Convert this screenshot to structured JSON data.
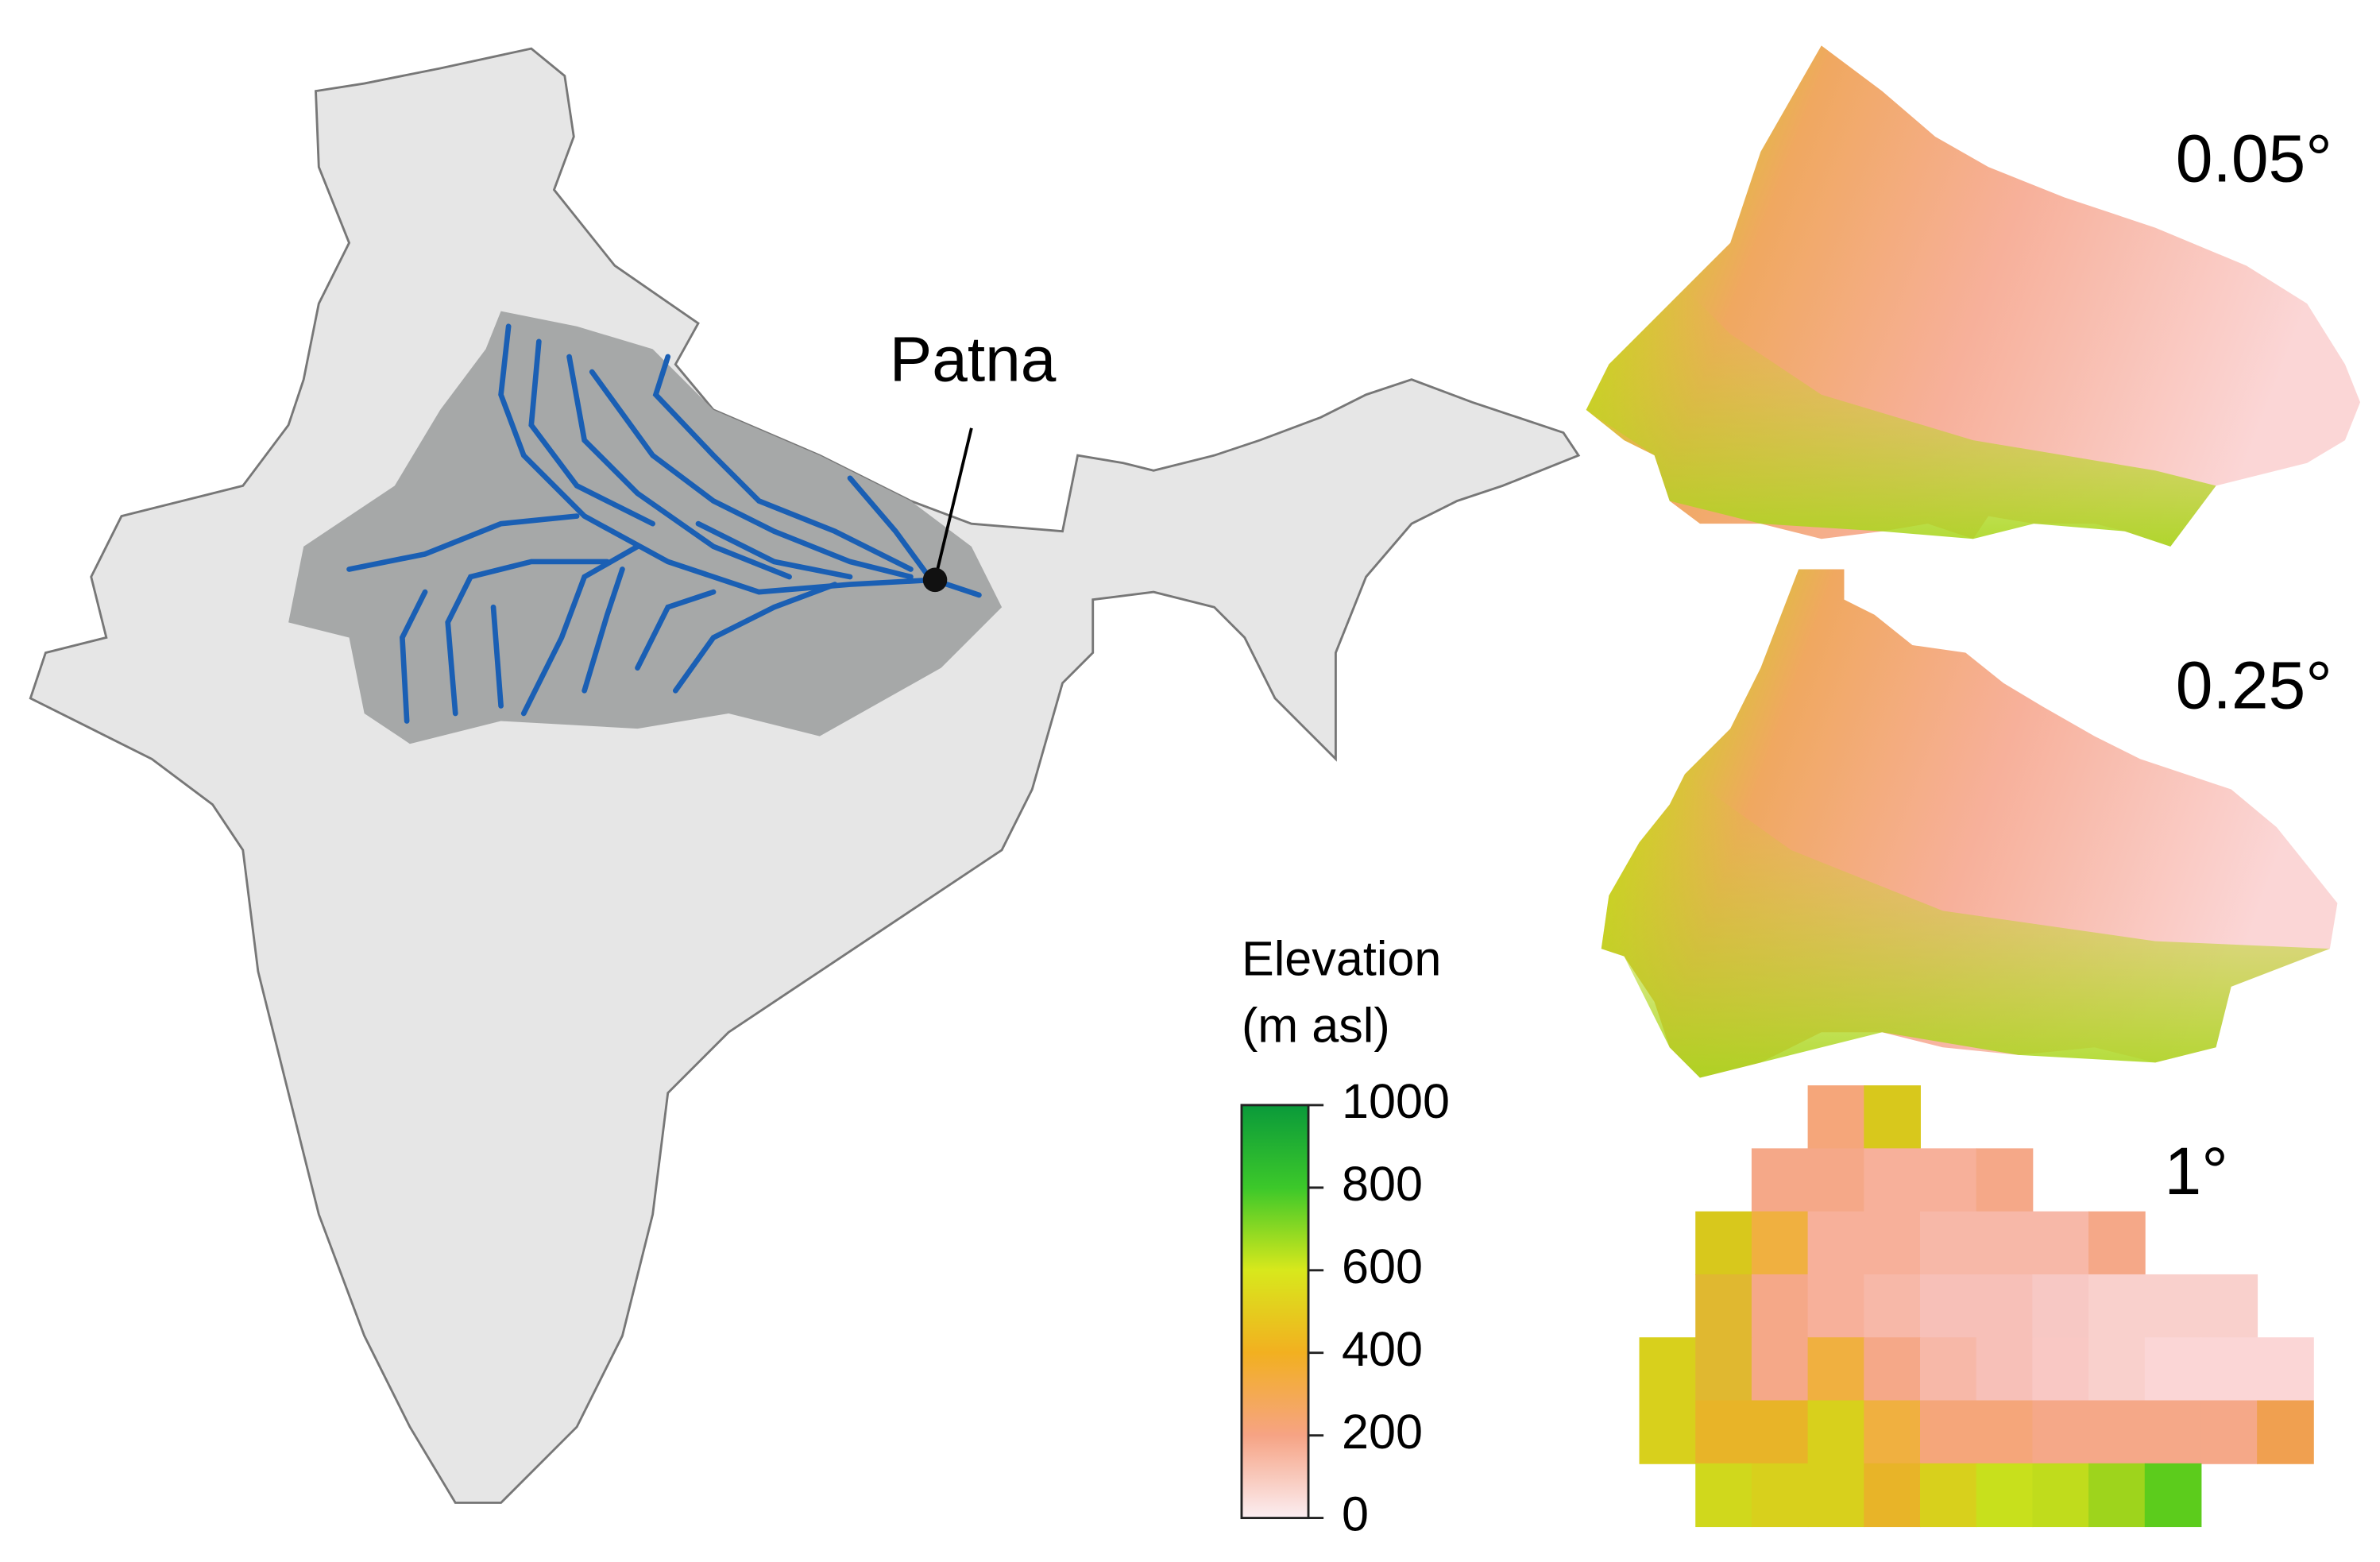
{
  "map": {
    "city_label": "Patna",
    "panels": [
      "0.05°",
      "0.25°",
      "1°"
    ],
    "legend": {
      "title": "Elevation",
      "unit": "(m asl)",
      "range": [
        0,
        1000
      ],
      "ticks": [
        0,
        200,
        400,
        600,
        800,
        1000
      ]
    }
  }
}
